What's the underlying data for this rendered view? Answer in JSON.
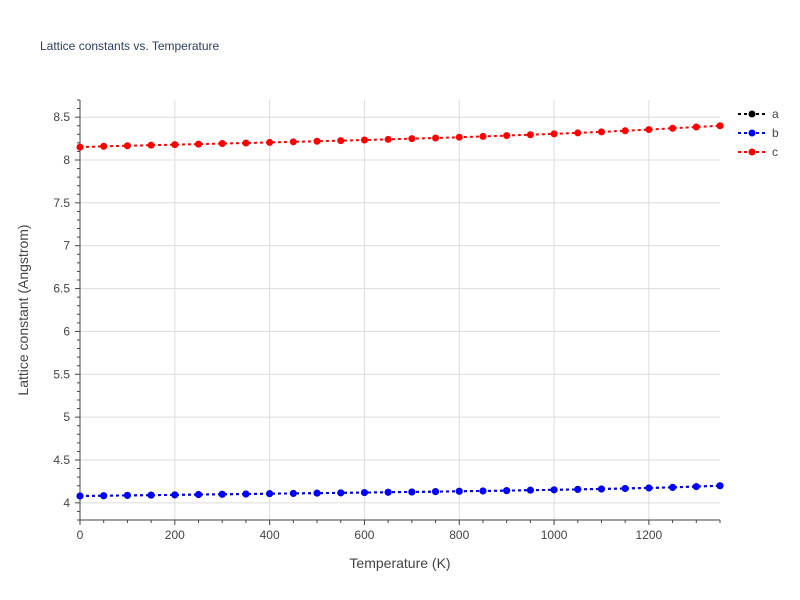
{
  "chart_data": {
    "type": "line",
    "title": "Lattice constants vs. Temperature",
    "xlabel": "Temperature (K)",
    "ylabel": "Lattice constant (Angstrom)",
    "xlim": [
      0,
      1350
    ],
    "ylim": [
      3.8,
      8.7
    ],
    "xticks": [
      0,
      200,
      400,
      600,
      800,
      1000,
      1200
    ],
    "yticks": [
      4,
      4.5,
      5,
      5.5,
      6,
      6.5,
      7,
      7.5,
      8,
      8.5
    ],
    "grid": true,
    "legend_position": "top-right",
    "x": [
      0,
      50,
      100,
      150,
      200,
      250,
      300,
      350,
      400,
      450,
      500,
      550,
      600,
      650,
      700,
      750,
      800,
      850,
      900,
      950,
      1000,
      1050,
      1100,
      1150,
      1200,
      1250,
      1300,
      1350
    ],
    "series": [
      {
        "name": "a",
        "color": "#000000",
        "values": [
          4.08,
          4.083,
          4.087,
          4.09,
          4.093,
          4.097,
          4.1,
          4.103,
          4.107,
          4.11,
          4.113,
          4.117,
          4.12,
          4.124,
          4.127,
          4.131,
          4.135,
          4.139,
          4.143,
          4.148,
          4.152,
          4.157,
          4.162,
          4.168,
          4.174,
          4.181,
          4.19,
          4.2
        ]
      },
      {
        "name": "b",
        "color": "#0000ff",
        "values": [
          4.08,
          4.083,
          4.087,
          4.09,
          4.093,
          4.097,
          4.1,
          4.103,
          4.107,
          4.11,
          4.113,
          4.117,
          4.12,
          4.124,
          4.127,
          4.131,
          4.135,
          4.139,
          4.143,
          4.148,
          4.152,
          4.157,
          4.162,
          4.168,
          4.174,
          4.181,
          4.19,
          4.2
        ]
      },
      {
        "name": "c",
        "color": "#ff0000",
        "values": [
          8.15,
          8.16,
          8.166,
          8.173,
          8.179,
          8.185,
          8.192,
          8.198,
          8.205,
          8.212,
          8.219,
          8.226,
          8.233,
          8.241,
          8.249,
          8.257,
          8.266,
          8.275,
          8.285,
          8.295,
          8.305,
          8.316,
          8.328,
          8.341,
          8.355,
          8.37,
          8.385,
          8.4
        ]
      }
    ]
  }
}
